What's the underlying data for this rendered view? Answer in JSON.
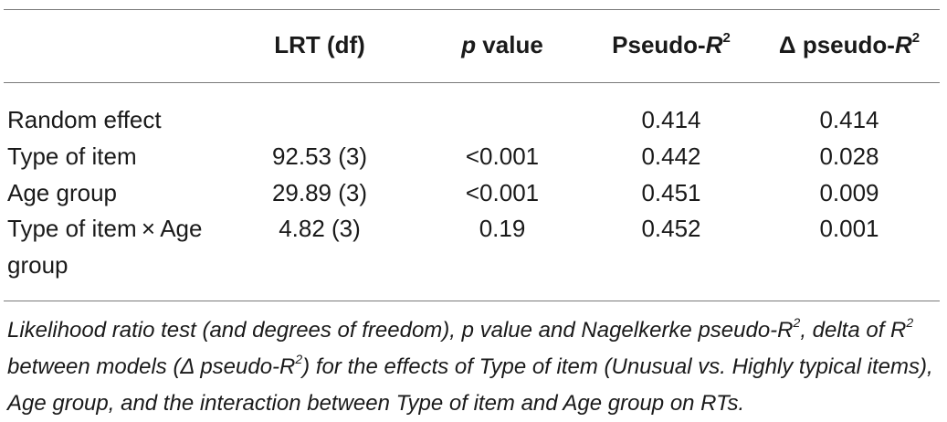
{
  "table": {
    "headers": {
      "lrt": "LRT (df)",
      "p_italic": "p",
      "p_rest": " value",
      "pseudo_pre": "Pseudo-",
      "pseudo_r": "R",
      "pseudo_sup": "2",
      "delta_pre": "Δ pseudo-",
      "delta_r": "R",
      "delta_sup": "2"
    },
    "rows": [
      {
        "label": "Random effect",
        "lrt": "",
        "p": "",
        "pseudo": "0.414",
        "delta": "0.414"
      },
      {
        "label": "Type of item",
        "lrt": "92.53 (3)",
        "p": "<0.001",
        "pseudo": "0.442",
        "delta": "0.028"
      },
      {
        "label": "Age group",
        "lrt": "29.89 (3)",
        "p": "<0.001",
        "pseudo": "0.451",
        "delta": "0.009"
      },
      {
        "label": "Type of item × Age",
        "label_cont": "group",
        "lrt": "4.82 (3)",
        "p": "0.19",
        "pseudo": "0.452",
        "delta": "0.001"
      }
    ],
    "note": {
      "part1": "Likelihood ratio test (and degrees of freedom), p value and Nagelkerke pseudo-R",
      "sup1": "2",
      "part2": ", delta of R",
      "sup2": "2",
      "part3": " between models (Δ pseudo-R",
      "sup3": "2",
      "part4": ") for the effects of Type of item (Unusual vs. Highly typical items), Age group, and the interaction between Type of item and Age group on RTs."
    }
  }
}
